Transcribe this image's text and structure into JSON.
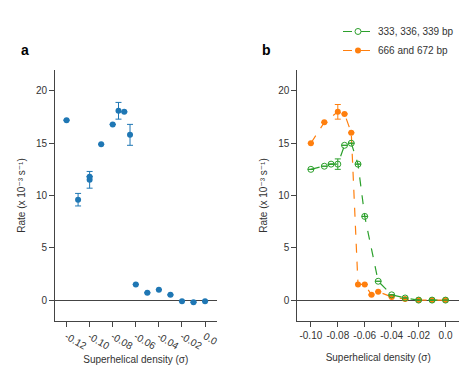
{
  "chart_data": [
    {
      "type": "scatter",
      "title": "a",
      "x": [
        -0.12,
        -0.11,
        -0.1,
        -0.1,
        -0.09,
        -0.08,
        -0.075,
        -0.07,
        -0.065,
        -0.06,
        -0.05,
        -0.04,
        -0.03,
        -0.02,
        -0.01,
        0.0
      ],
      "values": [
        17.2,
        9.6,
        11.5,
        11.8,
        14.9,
        16.8,
        18.1,
        18.0,
        15.8,
        1.5,
        0.7,
        1.0,
        0.5,
        -0.1,
        -0.2,
        -0.1
      ],
      "yerr": [
        0.0,
        0.6,
        0.8,
        0.0,
        0.0,
        0.0,
        0.8,
        0.0,
        1.0,
        0.0,
        0.0,
        0.0,
        0.0,
        0.0,
        0.0,
        0.0
      ],
      "marker": "circle",
      "xlabel": "Superhelical density (σ)",
      "ylabel": "Rate (x 10⁻³ s⁻¹)",
      "xlim": [
        -0.13,
        0.01
      ],
      "ylim": [
        -2,
        22
      ],
      "xticks": [
        -0.12,
        {
          "value": -0.1,
          "label": "-0.10"
        },
        -0.08,
        -0.06,
        -0.04,
        -0.02,
        {
          "value": 0.0,
          "label": "0.0"
        }
      ],
      "yticks": [
        0,
        5,
        10,
        15,
        20
      ],
      "grid": false
    },
    {
      "type": "line",
      "title": "b",
      "series": [
        {
          "name": "666 and 672 bp",
          "marker": "circle",
          "line_style": "dashed",
          "x": [
            -0.1,
            -0.09,
            -0.08,
            -0.075,
            -0.07,
            -0.065,
            -0.06,
            -0.055,
            -0.05,
            -0.04,
            -0.03,
            -0.02,
            -0.01,
            0.0
          ],
          "values": [
            15.0,
            17.0,
            18.0,
            17.8,
            16.0,
            1.5,
            1.5,
            0.5,
            0.8,
            0.3,
            0.1,
            0.0,
            0.0,
            0.0
          ],
          "yerr": [
            0.0,
            0.0,
            0.7,
            0.0,
            0.0,
            0.0,
            0.0,
            0.0,
            0.0,
            0.0,
            0.0,
            0.0,
            0.0,
            0.0
          ]
        },
        {
          "name": "333, 336, 339 bp",
          "marker": "circle-open",
          "line_style": "dashed",
          "x": [
            -0.1,
            -0.09,
            -0.085,
            -0.08,
            -0.075,
            -0.07,
            -0.065,
            -0.06,
            -0.05,
            -0.04,
            -0.03,
            -0.02,
            -0.01,
            0.0
          ],
          "values": [
            12.5,
            12.8,
            13.0,
            13.0,
            14.8,
            15.0,
            13.0,
            8.0,
            1.8,
            0.5,
            0.2,
            0.0,
            0.0,
            0.0
          ],
          "yerr": [
            0.0,
            0.0,
            0.0,
            0.5,
            0.0,
            0.0,
            0.0,
            0.0,
            0.0,
            0.0,
            0.0,
            0.0,
            0.0,
            0.0
          ]
        }
      ],
      "xlabel": "Superhelical density (σ)",
      "ylabel": "Rate (x 10⁻³ s⁻¹)",
      "xlim": [
        -0.11,
        0.01
      ],
      "ylim": [
        -2,
        22
      ],
      "xticks": [
        {
          "value": -0.1,
          "label": "-0.10"
        },
        -0.08,
        -0.06,
        -0.04,
        -0.02,
        {
          "value": 0.0,
          "label": "0.0"
        }
      ],
      "yticks": [
        0,
        5,
        10,
        15,
        20
      ],
      "legend": "upper right",
      "grid": false
    }
  ]
}
